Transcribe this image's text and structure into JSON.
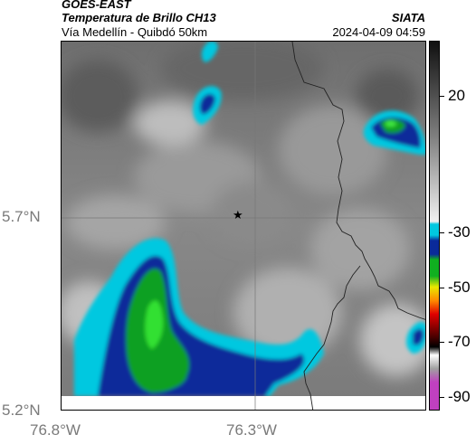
{
  "header": {
    "satellite": "GOES-EAST",
    "product": "Temperatura de Brillo CH13",
    "route": "Vía Medellín - Quibdó 50km",
    "agency": "SIATA",
    "timestamp": "2024-04-09 04:59"
  },
  "map": {
    "y_axis": {
      "labels": [
        "5.7°N",
        "5.2°N"
      ],
      "values": [
        5.7,
        5.2
      ]
    },
    "x_axis": {
      "labels": [
        "76.8°W",
        "76.3°W"
      ],
      "values": [
        -76.8,
        -76.3
      ]
    },
    "marker": {
      "symbol": "★",
      "name": "star-marker-icon"
    },
    "gridlines": true
  },
  "colorbar": {
    "labels": [
      "20",
      "-30",
      "-50",
      "-70",
      "-90"
    ],
    "values": [
      20,
      -30,
      -50,
      -70,
      -90
    ],
    "range": [
      -95,
      40
    ],
    "colors": {
      "warm_gray_top": "#101010",
      "warm_gray_bottom": "#f0f0f0",
      "cyan": "#00c8e0",
      "blue": "#0a2a9a",
      "green": "#10b020",
      "yellow": "#e8e800",
      "orange": "#ff8a00",
      "red": "#e00000",
      "dark_red": "#500000",
      "magenta": "#c040c0"
    }
  }
}
